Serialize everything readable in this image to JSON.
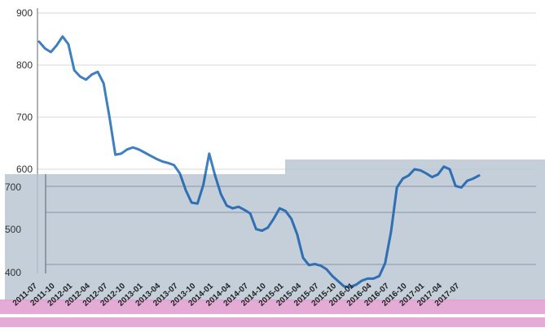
{
  "chart_data": {
    "type": "line",
    "title": "",
    "xlabel": "",
    "ylabel": "",
    "ylim": [
      400,
      900
    ],
    "y_ticks": [
      400,
      500,
      600,
      700,
      800,
      900
    ],
    "y_tick_labels": [
      "400",
      "500",
      "600",
      "700",
      "800",
      "900"
    ],
    "x_tick_labels": [
      "2011-07",
      "2011-10",
      "2012-01",
      "2012-04",
      "2012-07",
      "2012-10",
      "2013-01",
      "2013-04",
      "2013-07",
      "2013-10",
      "2014-01",
      "2014-04",
      "2014-07",
      "2014-10",
      "2015-01",
      "2015-04",
      "2015-07",
      "2015-10",
      "2016-01",
      "2016-04",
      "2016-07",
      "2016-10",
      "2017-01",
      "2017-04",
      "2017-07"
    ],
    "grid": true,
    "legend": "none",
    "colors": {
      "line": "#3d7fc1",
      "grid": "#d9d9d9",
      "overlay_band": "#b8c4d2",
      "overlay_grid": "#8796a8",
      "overlay_stripe": "#e0a2d0"
    },
    "series": [
      {
        "name": "",
        "x": [
          "2011-07",
          "2011-08",
          "2011-09",
          "2011-10",
          "2011-11",
          "2011-12",
          "2012-01",
          "2012-02",
          "2012-03",
          "2012-04",
          "2012-05",
          "2012-06",
          "2012-07",
          "2012-08",
          "2012-09",
          "2012-10",
          "2012-11",
          "2012-12",
          "2013-01",
          "2013-02",
          "2013-03",
          "2013-04",
          "2013-05",
          "2013-06",
          "2013-07",
          "2013-08",
          "2013-09",
          "2013-10",
          "2013-11",
          "2013-12",
          "2014-01",
          "2014-02",
          "2014-03",
          "2014-04",
          "2014-05",
          "2014-06",
          "2014-07",
          "2014-08",
          "2014-09",
          "2014-10",
          "2014-11",
          "2014-12",
          "2015-01",
          "2015-02",
          "2015-03",
          "2015-04",
          "2015-05",
          "2015-06",
          "2015-07",
          "2015-08",
          "2015-09",
          "2015-10",
          "2015-11",
          "2015-12",
          "2016-01",
          "2016-02",
          "2016-03",
          "2016-04",
          "2016-05",
          "2016-06",
          "2016-07",
          "2016-08",
          "2016-09",
          "2016-10",
          "2016-11",
          "2016-12",
          "2017-01",
          "2017-02",
          "2017-03",
          "2017-04",
          "2017-05",
          "2017-06",
          "2017-07",
          "2017-08",
          "2017-09",
          "2017-10"
        ],
        "values": [
          845,
          832,
          825,
          838,
          855,
          840,
          790,
          778,
          772,
          782,
          787,
          765,
          700,
          628,
          630,
          638,
          642,
          638,
          632,
          626,
          620,
          615,
          612,
          608,
          592,
          560,
          536,
          534,
          570,
          630,
          588,
          552,
          530,
          525,
          528,
          522,
          515,
          485,
          482,
          488,
          505,
          525,
          520,
          505,
          475,
          430,
          416,
          418,
          415,
          408,
          395,
          385,
          375,
          374,
          378,
          386,
          390,
          390,
          395,
          420,
          480,
          565,
          582,
          588,
          600,
          598,
          592,
          585,
          590,
          605,
          600,
          568,
          565,
          578,
          582,
          588
        ]
      }
    ]
  }
}
